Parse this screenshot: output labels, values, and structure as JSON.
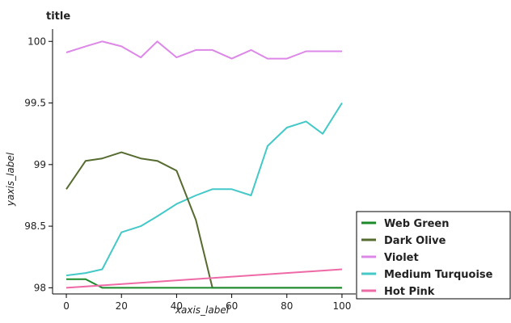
{
  "chart_data": {
    "type": "line",
    "title": "title",
    "xlabel": "xaxis_label",
    "ylabel": "yaxis_label",
    "xlim": [
      -5,
      105
    ],
    "ylim": [
      97.95,
      100.1
    ],
    "x_ticks": [
      0,
      20,
      40,
      60,
      80,
      100
    ],
    "x_tick_labels": [
      "0",
      "20",
      "40",
      "60",
      "80",
      "100"
    ],
    "y_ticks": [
      98,
      98.5,
      99,
      99.5,
      100
    ],
    "y_tick_labels": [
      "98",
      "98.5",
      "99",
      "99.5",
      "100"
    ],
    "legend_position": "bottom-right",
    "series": [
      {
        "name": "Violet",
        "color": "#dd88e8",
        "x": [
          0,
          7,
          13,
          20,
          27,
          33,
          40,
          47,
          53,
          60,
          67,
          73,
          80,
          87,
          93,
          100
        ],
        "y": [
          99.91,
          99.96,
          100.0,
          99.96,
          99.87,
          100.0,
          99.87,
          99.93,
          99.93,
          99.86,
          99.93,
          99.86,
          99.86,
          99.92,
          99.92,
          99.92
        ]
      },
      {
        "name": "Medium Turquoise",
        "color": "#44c8c8",
        "x": [
          0,
          7,
          13,
          20,
          27,
          33,
          40,
          47,
          53,
          60,
          67,
          73,
          80,
          87,
          93,
          100
        ],
        "y": [
          98.1,
          98.12,
          98.15,
          98.45,
          98.5,
          98.58,
          98.68,
          98.75,
          98.8,
          98.8,
          98.75,
          99.15,
          99.3,
          99.35,
          99.25,
          99.5
        ]
      },
      {
        "name": "Dark Olive",
        "color": "#556b2f",
        "x": [
          0,
          7,
          13,
          20,
          27,
          33,
          40,
          47,
          53,
          60,
          67,
          73,
          80,
          87,
          93,
          100
        ],
        "y": [
          98.8,
          99.03,
          99.05,
          99.1,
          99.05,
          99.03,
          98.95,
          98.55,
          98.0,
          98.0,
          98.0,
          98.0,
          98.0,
          98.0,
          98.0,
          98.0
        ]
      },
      {
        "name": "Web Green",
        "color": "#1a8a2a",
        "x": [
          0,
          7,
          13,
          20,
          27,
          33,
          40,
          47,
          53,
          60,
          67,
          73,
          80,
          87,
          93,
          100
        ],
        "y": [
          98.07,
          98.07,
          98.0,
          98.0,
          98.0,
          98.0,
          98.0,
          98.0,
          98.0,
          98.0,
          98.0,
          98.0,
          98.0,
          98.0,
          98.0,
          98.0
        ]
      },
      {
        "name": "Hot Pink",
        "color": "#ee6aa7",
        "x": [
          0,
          100
        ],
        "y": [
          98.0,
          98.15
        ]
      }
    ],
    "legend_order": [
      "Web Green",
      "Dark Olive",
      "Violet",
      "Medium Turquoise",
      "Hot Pink"
    ]
  }
}
